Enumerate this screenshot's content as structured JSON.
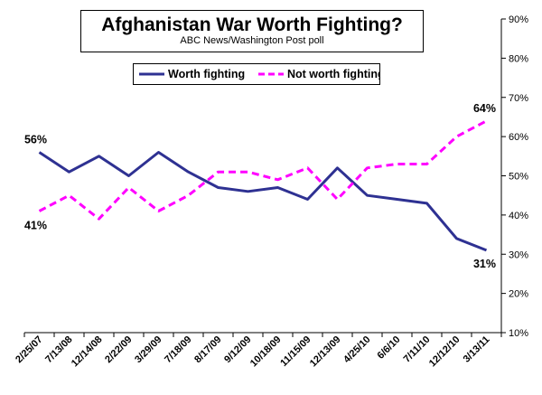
{
  "chart_data": {
    "type": "line",
    "title": "Afghanistan War Worth Fighting?",
    "subtitle": "ABC News/Washington Post poll",
    "categories": [
      "2/25/07",
      "7/13/08",
      "12/14/08",
      "2/22/09",
      "3/29/09",
      "7/18/09",
      "8/17/09",
      "9/12/09",
      "10/18/09",
      "11/15/09",
      "12/13/09",
      "4/25/10",
      "6/6/10",
      "7/11/10",
      "12/12/10",
      "3/13/11"
    ],
    "series": [
      {
        "name": "Worth fighting",
        "color": "#2e3192",
        "dash": "solid",
        "values": [
          56,
          51,
          55,
          50,
          56,
          51,
          47,
          46,
          47,
          44,
          52,
          45,
          44,
          43,
          34,
          31
        ]
      },
      {
        "name": "Not worth fighting",
        "color": "#ff00ff",
        "dash": "dashed",
        "values": [
          41,
          45,
          39,
          47,
          41,
          45,
          51,
          51,
          49,
          52,
          44,
          52,
          53,
          53,
          60,
          64
        ]
      }
    ],
    "y_axis": {
      "side": "right",
      "ylim": [
        10,
        90
      ],
      "ticks": [
        "10%",
        "20%",
        "30%",
        "40%",
        "50%",
        "60%",
        "70%",
        "80%",
        "90%"
      ]
    },
    "grid": false,
    "legend_position": "top-center",
    "data_labels": [
      {
        "text": "56%",
        "series": 0,
        "index": 0
      },
      {
        "text": "41%",
        "series": 1,
        "index": 0
      },
      {
        "text": "64%",
        "series": 1,
        "index": 15
      },
      {
        "text": "31%",
        "series": 0,
        "index": 15
      }
    ]
  }
}
